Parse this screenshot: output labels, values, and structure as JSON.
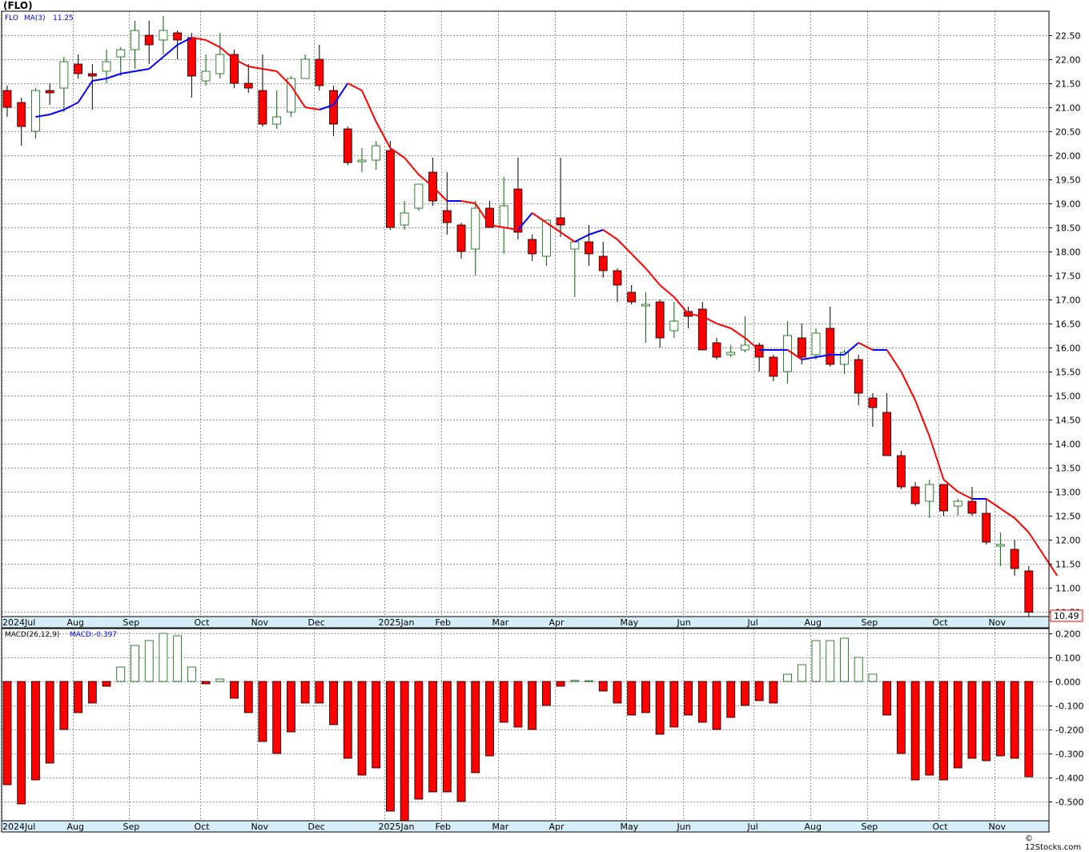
{
  "title": "(FLO)",
  "credit": "© 12Stocks.com",
  "legend": {
    "symbol": "FLO",
    "ma_label": "MA(3)",
    "ma_value": "11.25",
    "macd_params": "MACD(26,12,9)",
    "macd_value": "MACD:-0.397"
  },
  "last_price_label": "10.49",
  "colors": {
    "up": "#006400",
    "down": "#ff0000",
    "ma_up": "#0000ff",
    "ma_down": "#ff0000",
    "axis_band": "#d6eef8",
    "grid": "#999999"
  },
  "x_labels": [
    "2024Jul",
    "Aug",
    "Sep",
    "Oct",
    "Nov",
    "Dec",
    "2025Jan",
    "Feb",
    "Mar",
    "Apr",
    "May",
    "Jun",
    "Jul",
    "Aug",
    "Sep",
    "Oct",
    "Nov"
  ],
  "chart_data": [
    {
      "type": "candlestick",
      "ylim": [
        10.4,
        23.0
      ],
      "yticks": [
        "22.50",
        "22.00",
        "21.50",
        "21.00",
        "20.50",
        "20.00",
        "19.50",
        "19.00",
        "18.50",
        "18.00",
        "17.50",
        "17.00",
        "16.50",
        "16.00",
        "15.50",
        "15.00",
        "14.50",
        "14.00",
        "13.50",
        "13.00",
        "12.50",
        "12.00",
        "11.50",
        "11.00",
        "10.50"
      ],
      "grid": true,
      "candles": [
        {
          "o": 21.35,
          "h": 21.45,
          "l": 20.8,
          "c": 21.0
        },
        {
          "o": 21.1,
          "h": 21.2,
          "l": 20.2,
          "c": 20.6
        },
        {
          "o": 20.5,
          "h": 21.4,
          "l": 20.35,
          "c": 21.35
        },
        {
          "o": 21.35,
          "h": 21.5,
          "l": 21.05,
          "c": 21.3
        },
        {
          "o": 21.4,
          "h": 22.05,
          "l": 20.9,
          "c": 21.95
        },
        {
          "o": 21.9,
          "h": 22.1,
          "l": 21.6,
          "c": 21.7
        },
        {
          "o": 21.7,
          "h": 21.9,
          "l": 20.95,
          "c": 21.65
        },
        {
          "o": 21.75,
          "h": 22.2,
          "l": 21.5,
          "c": 21.95
        },
        {
          "o": 22.05,
          "h": 22.25,
          "l": 21.65,
          "c": 22.2
        },
        {
          "o": 22.2,
          "h": 22.8,
          "l": 21.8,
          "c": 22.6
        },
        {
          "o": 22.5,
          "h": 22.8,
          "l": 21.9,
          "c": 22.3
        },
        {
          "o": 22.4,
          "h": 22.9,
          "l": 22.1,
          "c": 22.6
        },
        {
          "o": 22.55,
          "h": 22.6,
          "l": 22.0,
          "c": 22.4
        },
        {
          "o": 22.45,
          "h": 22.55,
          "l": 21.2,
          "c": 21.65
        },
        {
          "o": 21.55,
          "h": 22.1,
          "l": 21.45,
          "c": 21.75
        },
        {
          "o": 21.7,
          "h": 22.55,
          "l": 21.6,
          "c": 22.1
        },
        {
          "o": 22.1,
          "h": 22.2,
          "l": 21.4,
          "c": 21.5
        },
        {
          "o": 21.5,
          "h": 21.9,
          "l": 21.3,
          "c": 21.4
        },
        {
          "o": 21.35,
          "h": 22.1,
          "l": 20.6,
          "c": 20.65
        },
        {
          "o": 20.65,
          "h": 21.35,
          "l": 20.55,
          "c": 20.8
        },
        {
          "o": 20.9,
          "h": 21.65,
          "l": 20.8,
          "c": 21.6
        },
        {
          "o": 21.6,
          "h": 22.1,
          "l": 21.6,
          "c": 22.0
        },
        {
          "o": 22.0,
          "h": 22.3,
          "l": 21.35,
          "c": 21.45
        },
        {
          "o": 21.35,
          "h": 21.45,
          "l": 20.4,
          "c": 20.65
        },
        {
          "o": 20.55,
          "h": 20.6,
          "l": 19.8,
          "c": 19.85
        },
        {
          "o": 19.9,
          "h": 20.15,
          "l": 19.65,
          "c": 19.9
        },
        {
          "o": 19.9,
          "h": 20.3,
          "l": 19.7,
          "c": 20.2
        },
        {
          "o": 20.1,
          "h": 20.3,
          "l": 18.45,
          "c": 18.5
        },
        {
          "o": 18.55,
          "h": 19.05,
          "l": 18.45,
          "c": 18.8
        },
        {
          "o": 18.9,
          "h": 19.4,
          "l": 18.85,
          "c": 19.4
        },
        {
          "o": 19.65,
          "h": 19.95,
          "l": 18.95,
          "c": 19.05
        },
        {
          "o": 18.85,
          "h": 19.65,
          "l": 18.35,
          "c": 18.6
        },
        {
          "o": 18.55,
          "h": 18.6,
          "l": 17.85,
          "c": 18.0
        },
        {
          "o": 18.05,
          "h": 19.05,
          "l": 17.5,
          "c": 18.9
        },
        {
          "o": 18.9,
          "h": 19.05,
          "l": 18.55,
          "c": 18.5
        },
        {
          "o": 18.5,
          "h": 19.55,
          "l": 17.95,
          "c": 18.95
        },
        {
          "o": 19.3,
          "h": 19.95,
          "l": 18.25,
          "c": 18.4
        },
        {
          "o": 18.25,
          "h": 18.35,
          "l": 17.8,
          "c": 17.95
        },
        {
          "o": 17.9,
          "h": 18.6,
          "l": 17.7,
          "c": 18.65
        },
        {
          "o": 18.7,
          "h": 19.95,
          "l": 18.3,
          "c": 18.55
        },
        {
          "o": 18.05,
          "h": 18.2,
          "l": 17.05,
          "c": 18.2
        },
        {
          "o": 18.2,
          "h": 18.55,
          "l": 17.7,
          "c": 17.95
        },
        {
          "o": 17.9,
          "h": 18.2,
          "l": 17.45,
          "c": 17.6
        },
        {
          "o": 17.6,
          "h": 17.65,
          "l": 16.95,
          "c": 17.3
        },
        {
          "o": 17.15,
          "h": 17.3,
          "l": 16.9,
          "c": 16.95
        },
        {
          "o": 16.9,
          "h": 17.15,
          "l": 16.1,
          "c": 16.9
        },
        {
          "o": 16.95,
          "h": 17.0,
          "l": 16.0,
          "c": 16.2
        },
        {
          "o": 16.35,
          "h": 16.95,
          "l": 16.2,
          "c": 16.55
        },
        {
          "o": 16.75,
          "h": 16.85,
          "l": 16.4,
          "c": 16.65
        },
        {
          "o": 16.8,
          "h": 16.95,
          "l": 15.95,
          "c": 15.95
        },
        {
          "o": 16.1,
          "h": 16.2,
          "l": 15.75,
          "c": 15.8
        },
        {
          "o": 15.85,
          "h": 16.05,
          "l": 15.8,
          "c": 15.9
        },
        {
          "o": 15.95,
          "h": 16.65,
          "l": 15.9,
          "c": 16.05
        },
        {
          "o": 16.05,
          "h": 16.1,
          "l": 15.5,
          "c": 15.8
        },
        {
          "o": 15.8,
          "h": 15.85,
          "l": 15.3,
          "c": 15.4
        },
        {
          "o": 15.5,
          "h": 16.55,
          "l": 15.25,
          "c": 16.25
        },
        {
          "o": 16.2,
          "h": 16.5,
          "l": 15.65,
          "c": 15.8
        },
        {
          "o": 15.85,
          "h": 16.4,
          "l": 15.75,
          "c": 16.3
        },
        {
          "o": 16.4,
          "h": 16.85,
          "l": 15.6,
          "c": 15.65
        },
        {
          "o": 15.65,
          "h": 15.95,
          "l": 15.45,
          "c": 15.9
        },
        {
          "o": 15.75,
          "h": 15.85,
          "l": 14.8,
          "c": 15.05
        },
        {
          "o": 14.95,
          "h": 15.05,
          "l": 14.35,
          "c": 14.75
        },
        {
          "o": 14.65,
          "h": 15.05,
          "l": 13.75,
          "c": 13.75
        },
        {
          "o": 13.75,
          "h": 13.85,
          "l": 13.05,
          "c": 13.1
        },
        {
          "o": 13.1,
          "h": 13.2,
          "l": 12.7,
          "c": 12.75
        },
        {
          "o": 12.8,
          "h": 13.25,
          "l": 12.45,
          "c": 13.15
        },
        {
          "o": 13.15,
          "h": 13.15,
          "l": 12.5,
          "c": 12.6
        },
        {
          "o": 12.7,
          "h": 12.85,
          "l": 12.5,
          "c": 12.8
        },
        {
          "o": 12.8,
          "h": 13.1,
          "l": 12.5,
          "c": 12.55
        },
        {
          "o": 12.55,
          "h": 12.85,
          "l": 11.9,
          "c": 11.95
        },
        {
          "o": 11.9,
          "h": 12.15,
          "l": 11.45,
          "c": 11.9
        },
        {
          "o": 11.8,
          "h": 12.0,
          "l": 11.25,
          "c": 11.4
        },
        {
          "o": 11.35,
          "h": 11.45,
          "l": 10.4,
          "c": 10.49
        }
      ],
      "ma3": [
        20.8,
        20.85,
        20.95,
        21.1,
        21.55,
        21.6,
        21.7,
        21.75,
        21.8,
        22.05,
        22.3,
        22.45,
        22.4,
        22.25,
        22.0,
        21.85,
        21.8,
        21.75,
        21.45,
        21.0,
        20.95,
        21.05,
        21.5,
        21.35,
        20.7,
        20.15,
        19.95,
        19.6,
        19.35,
        19.05,
        19.05,
        19.0,
        18.55,
        18.5,
        18.45,
        18.8,
        18.6,
        18.4,
        18.2,
        18.35,
        18.45,
        18.25,
        17.95,
        17.65,
        17.3,
        17.05,
        16.7,
        16.65,
        16.5,
        16.4,
        16.2,
        15.95,
        15.95,
        15.95,
        15.75,
        15.8,
        15.85,
        15.85,
        16.1,
        15.95,
        15.95,
        15.5,
        14.9,
        14.15,
        13.25,
        13.0,
        12.85,
        12.85,
        12.65,
        12.45,
        12.15,
        11.7,
        11.25
      ]
    },
    {
      "type": "bar",
      "name": "MACD(26,12,9)",
      "ylim": [
        -0.58,
        0.22
      ],
      "yticks": [
        "0.200",
        "0.100",
        "0.000",
        "-0.100",
        "-0.200",
        "-0.300",
        "-0.400",
        "-0.500"
      ],
      "grid": true,
      "values": [
        -0.43,
        -0.51,
        -0.41,
        -0.34,
        -0.2,
        -0.13,
        -0.09,
        -0.02,
        0.06,
        0.15,
        0.17,
        0.2,
        0.19,
        0.06,
        -0.01,
        0.01,
        -0.07,
        -0.13,
        -0.25,
        -0.3,
        -0.21,
        -0.09,
        -0.09,
        -0.18,
        -0.32,
        -0.39,
        -0.36,
        -0.54,
        -0.58,
        -0.49,
        -0.46,
        -0.46,
        -0.5,
        -0.38,
        -0.31,
        -0.17,
        -0.19,
        -0.2,
        -0.1,
        -0.02,
        0.004,
        0.003,
        -0.04,
        -0.09,
        -0.14,
        -0.13,
        -0.22,
        -0.19,
        -0.14,
        -0.17,
        -0.2,
        -0.15,
        -0.1,
        -0.08,
        -0.09,
        0.03,
        0.07,
        0.17,
        0.17,
        0.18,
        0.1,
        0.03,
        -0.14,
        -0.3,
        -0.41,
        -0.39,
        -0.41,
        -0.36,
        -0.32,
        -0.33,
        -0.31,
        -0.32,
        -0.397
      ]
    }
  ]
}
